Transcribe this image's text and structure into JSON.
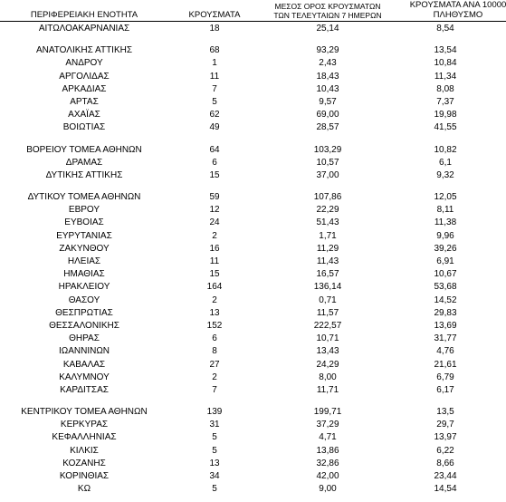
{
  "columns": {
    "region": "ΠΕΡΙΦΕΡΕΙΑΚΗ ΕΝΟΤΗΤΑ",
    "cases": "ΚΡΟΥΣΜΑΤΑ",
    "avg_line1": "ΜΕΣΟΣ ΟΡΟΣ ΚΡΟΥΣΜΑΤΩΝ",
    "avg_line2": "ΤΩΝ ΤΕΛΕΥΤΑΙΩΝ 7 ΗΜΕΡΩΝ",
    "per_line1": "ΚΡΟΥΣΜΑΤΑ ΑΝΑ 10000",
    "per_line2": "ΠΛΗΘΥΣΜΟ"
  },
  "rows": [
    {
      "region": "ΑΙΤΩΛΟΑΚΑΡΝΑΝΙΑΣ",
      "cases": "18",
      "avg": "25,14",
      "per": "8,54"
    },
    {
      "gap": true
    },
    {
      "region": "ΑΝΑΤΟΛΙΚΗΣ ΑΤΤΙΚΗΣ",
      "cases": "68",
      "avg": "93,29",
      "per": "13,54"
    },
    {
      "region": "ΑΝΔΡΟΥ",
      "cases": "1",
      "avg": "2,43",
      "per": "10,84"
    },
    {
      "region": "ΑΡΓΟΛΙΔΑΣ",
      "cases": "11",
      "avg": "18,43",
      "per": "11,34"
    },
    {
      "region": "ΑΡΚΑΔΙΑΣ",
      "cases": "7",
      "avg": "10,43",
      "per": "8,08"
    },
    {
      "region": "ΑΡΤΑΣ",
      "cases": "5",
      "avg": "9,57",
      "per": "7,37"
    },
    {
      "region": "ΑΧΑΪΑΣ",
      "cases": "62",
      "avg": "69,00",
      "per": "19,98"
    },
    {
      "region": "ΒΟΙΩΤΙΑΣ",
      "cases": "49",
      "avg": "28,57",
      "per": "41,55"
    },
    {
      "gap": true
    },
    {
      "region": "ΒΟΡΕΙΟΥ ΤΟΜΕΑ ΑΘΗΝΩΝ",
      "cases": "64",
      "avg": "103,29",
      "per": "10,82"
    },
    {
      "region": "ΔΡΑΜΑΣ",
      "cases": "6",
      "avg": "10,57",
      "per": "6,1"
    },
    {
      "region": "ΔΥΤΙΚΗΣ ΑΤΤΙΚΗΣ",
      "cases": "15",
      "avg": "37,00",
      "per": "9,32"
    },
    {
      "gap": true
    },
    {
      "region": "ΔΥΤΙΚΟΥ ΤΟΜΕΑ ΑΘΗΝΩΝ",
      "cases": "59",
      "avg": "107,86",
      "per": "12,05"
    },
    {
      "region": "ΕΒΡΟΥ",
      "cases": "12",
      "avg": "22,29",
      "per": "8,11"
    },
    {
      "region": "ΕΥΒΟΙΑΣ",
      "cases": "24",
      "avg": "51,43",
      "per": "11,38"
    },
    {
      "region": "ΕΥΡΥΤΑΝΙΑΣ",
      "cases": "2",
      "avg": "1,71",
      "per": "9,96"
    },
    {
      "region": "ΖΑΚΥΝΘΟΥ",
      "cases": "16",
      "avg": "11,29",
      "per": "39,26"
    },
    {
      "region": "ΗΛΕΙΑΣ",
      "cases": "11",
      "avg": "11,43",
      "per": "6,91"
    },
    {
      "region": "ΗΜΑΘΙΑΣ",
      "cases": "15",
      "avg": "16,57",
      "per": "10,67"
    },
    {
      "region": "ΗΡΑΚΛΕΙΟΥ",
      "cases": "164",
      "avg": "136,14",
      "per": "53,68"
    },
    {
      "region": "ΘΑΣΟΥ",
      "cases": "2",
      "avg": "0,71",
      "per": "14,52"
    },
    {
      "region": "ΘΕΣΠΡΩΤΙΑΣ",
      "cases": "13",
      "avg": "11,57",
      "per": "29,83"
    },
    {
      "region": "ΘΕΣΣΑΛΟΝΙΚΗΣ",
      "cases": "152",
      "avg": "222,57",
      "per": "13,69"
    },
    {
      "region": "ΘΗΡΑΣ",
      "cases": "6",
      "avg": "10,71",
      "per": "31,77"
    },
    {
      "region": "ΙΩΑΝΝΙΝΩΝ",
      "cases": "8",
      "avg": "13,43",
      "per": "4,76"
    },
    {
      "region": "ΚΑΒΑΛΑΣ",
      "cases": "27",
      "avg": "24,29",
      "per": "21,61"
    },
    {
      "region": "ΚΑΛΥΜΝΟΥ",
      "cases": "2",
      "avg": "8,00",
      "per": "6,79"
    },
    {
      "region": "ΚΑΡΔΙΤΣΑΣ",
      "cases": "7",
      "avg": "11,71",
      "per": "6,17"
    },
    {
      "gap": true
    },
    {
      "region": "ΚΕΝΤΡΙΚΟΥ ΤΟΜΕΑ ΑΘΗΝΩΝ",
      "cases": "139",
      "avg": "199,71",
      "per": "13,5"
    },
    {
      "region": "ΚΕΡΚΥΡΑΣ",
      "cases": "31",
      "avg": "37,29",
      "per": "29,7"
    },
    {
      "region": "ΚΕΦΑΛΛΗΝΙΑΣ",
      "cases": "5",
      "avg": "4,71",
      "per": "13,97"
    },
    {
      "region": "ΚΙΛΚΙΣ",
      "cases": "5",
      "avg": "13,86",
      "per": "6,22"
    },
    {
      "region": "ΚΟΖΑΝΗΣ",
      "cases": "13",
      "avg": "32,86",
      "per": "8,66"
    },
    {
      "region": "ΚΟΡΙΝΘΙΑΣ",
      "cases": "34",
      "avg": "42,00",
      "per": "23,44"
    },
    {
      "region": "ΚΩ",
      "cases": "5",
      "avg": "9,00",
      "per": "14,54"
    }
  ]
}
